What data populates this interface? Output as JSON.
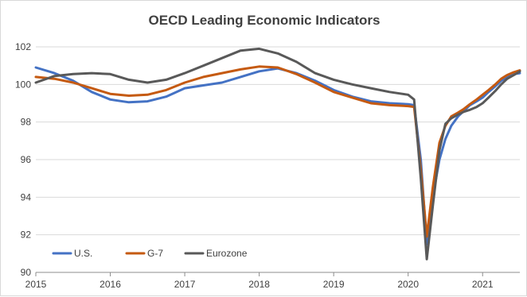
{
  "chart_data": {
    "type": "line",
    "title": "OECD Leading Economic Indicators",
    "xlabel": "",
    "ylabel": "",
    "xlim": [
      2015,
      2021.5
    ],
    "ylim": [
      90,
      102
    ],
    "yticks": [
      90,
      92,
      94,
      96,
      98,
      100,
      102
    ],
    "xticks": [
      2015,
      2016,
      2017,
      2018,
      2019,
      2020,
      2021
    ],
    "grid": "horizontal",
    "legend_position": "bottom-left",
    "series": [
      {
        "name": "U.S.",
        "color": "#4472c4",
        "x": [
          2015.0,
          2015.25,
          2015.5,
          2015.75,
          2016.0,
          2016.25,
          2016.5,
          2016.75,
          2017.0,
          2017.25,
          2017.5,
          2017.75,
          2018.0,
          2018.25,
          2018.5,
          2018.75,
          2019.0,
          2019.25,
          2019.5,
          2019.75,
          2020.0,
          2020.08,
          2020.17,
          2020.25,
          2020.33,
          2020.42,
          2020.5,
          2020.58,
          2020.67,
          2020.75,
          2020.83,
          2020.92,
          2021.0,
          2021.08,
          2021.17,
          2021.25,
          2021.33,
          2021.42,
          2021.5
        ],
        "y": [
          100.9,
          100.6,
          100.2,
          99.6,
          99.2,
          99.05,
          99.1,
          99.35,
          99.8,
          99.95,
          100.1,
          100.4,
          100.7,
          100.85,
          100.6,
          100.2,
          99.7,
          99.35,
          99.1,
          99.0,
          98.95,
          98.9,
          96.0,
          91.5,
          94.0,
          96.0,
          97.1,
          97.8,
          98.3,
          98.6,
          98.9,
          99.1,
          99.3,
          99.6,
          99.9,
          100.2,
          100.4,
          100.55,
          100.6
        ]
      },
      {
        "name": "G-7",
        "color": "#c55a11",
        "x": [
          2015.0,
          2015.25,
          2015.5,
          2015.75,
          2016.0,
          2016.25,
          2016.5,
          2016.75,
          2017.0,
          2017.25,
          2017.5,
          2017.75,
          2018.0,
          2018.25,
          2018.5,
          2018.75,
          2019.0,
          2019.25,
          2019.5,
          2019.75,
          2020.0,
          2020.08,
          2020.17,
          2020.25,
          2020.33,
          2020.42,
          2020.5,
          2020.58,
          2020.67,
          2020.75,
          2020.83,
          2020.92,
          2021.0,
          2021.08,
          2021.17,
          2021.25,
          2021.33,
          2021.42,
          2021.5
        ],
        "y": [
          100.4,
          100.3,
          100.1,
          99.8,
          99.5,
          99.4,
          99.45,
          99.7,
          100.1,
          100.4,
          100.6,
          100.8,
          100.95,
          100.9,
          100.55,
          100.1,
          99.6,
          99.3,
          99.0,
          98.9,
          98.85,
          98.8,
          95.5,
          91.9,
          94.5,
          96.9,
          97.8,
          98.3,
          98.5,
          98.7,
          98.95,
          99.2,
          99.45,
          99.7,
          100.0,
          100.3,
          100.5,
          100.65,
          100.75
        ]
      },
      {
        "name": "Eurozone",
        "color": "#595959",
        "x": [
          2015.0,
          2015.25,
          2015.5,
          2015.75,
          2016.0,
          2016.25,
          2016.5,
          2016.75,
          2017.0,
          2017.25,
          2017.5,
          2017.75,
          2018.0,
          2018.25,
          2018.5,
          2018.75,
          2019.0,
          2019.25,
          2019.5,
          2019.75,
          2020.0,
          2020.08,
          2020.17,
          2020.25,
          2020.33,
          2020.42,
          2020.5,
          2020.58,
          2020.67,
          2020.75,
          2020.83,
          2020.92,
          2021.0,
          2021.08,
          2021.17,
          2021.25,
          2021.33,
          2021.42,
          2021.5
        ],
        "y": [
          100.1,
          100.45,
          100.55,
          100.6,
          100.55,
          100.25,
          100.1,
          100.25,
          100.6,
          101.0,
          101.4,
          101.8,
          101.9,
          101.65,
          101.2,
          100.6,
          100.25,
          100.0,
          99.8,
          99.6,
          99.45,
          99.2,
          95.0,
          90.7,
          93.5,
          96.5,
          97.9,
          98.2,
          98.4,
          98.55,
          98.65,
          98.8,
          99.0,
          99.3,
          99.65,
          100.0,
          100.3,
          100.5,
          100.7
        ]
      }
    ]
  }
}
